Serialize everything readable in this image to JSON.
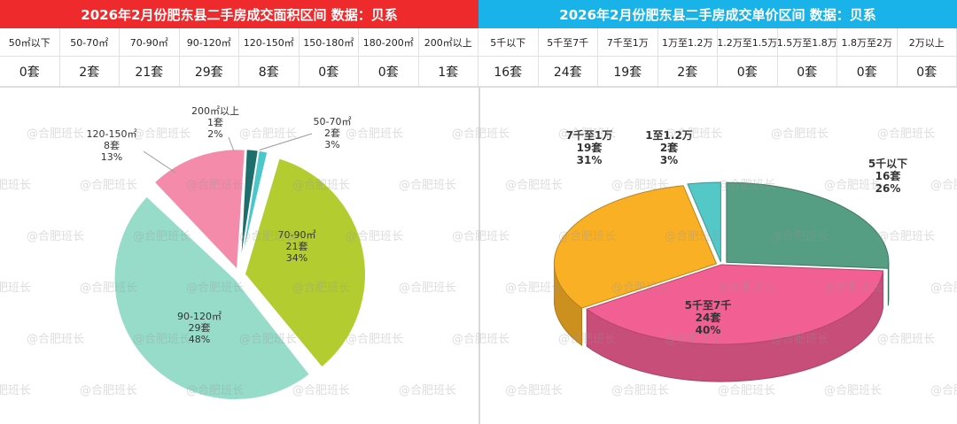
{
  "left": {
    "title": "2026年2月份肥东县二手房成交面积区间 数据：贝系",
    "title_bg": "#ee2a2c",
    "table": {
      "headers": [
        "50㎡以下",
        "50-70㎡",
        "70-90㎡",
        "90-120㎡",
        "120-150㎡",
        "150-180㎡",
        "180-200㎡",
        "200㎡以上"
      ],
      "values": [
        "0套",
        "2套",
        "21套",
        "29套",
        "8套",
        "0套",
        "0套",
        "1套"
      ]
    }
  },
  "right": {
    "title": "2026年2月份肥东县二手房成交单价区间 数据：贝系",
    "title_bg": "#19b3ea",
    "table": {
      "headers": [
        "5千以下",
        "5千至7千",
        "7千至1万",
        "1万至1.2万",
        "1.2万至1.5万",
        "1.5万至1.8万",
        "1.8万至2万",
        "2万以上"
      ],
      "values": [
        "16套",
        "24套",
        "19套",
        "2套",
        "0套",
        "0套",
        "0套",
        "0套"
      ]
    }
  },
  "watermark": "@合肥班长",
  "chart_data": [
    {
      "type": "pie",
      "categories": [
        "50-70㎡",
        "70-90㎡",
        "90-120㎡",
        "120-150㎡",
        "200㎡以上"
      ],
      "values": [
        2,
        21,
        29,
        8,
        1
      ],
      "count_labels": [
        "2套",
        "21套",
        "29套",
        "8套",
        "1套"
      ],
      "percent_labels": [
        "3%",
        "34%",
        "48%",
        "13%",
        "2%"
      ],
      "colors": [
        "#4cc7c9",
        "#b3cc2f",
        "#96dcc9",
        "#f48bab",
        "#1f6e6e"
      ]
    },
    {
      "type": "pie",
      "style": "3d",
      "categories": [
        "5千以下",
        "5千至7千",
        "7千至1万",
        "1至1.2万"
      ],
      "values": [
        16,
        24,
        19,
        2
      ],
      "count_labels": [
        "16套",
        "24套",
        "19套",
        "2套"
      ],
      "percent_labels": [
        "26%",
        "40%",
        "31%",
        "3%"
      ],
      "colors": [
        "#559e84",
        "#f25f92",
        "#f9b025",
        "#54c8c7"
      ]
    }
  ]
}
